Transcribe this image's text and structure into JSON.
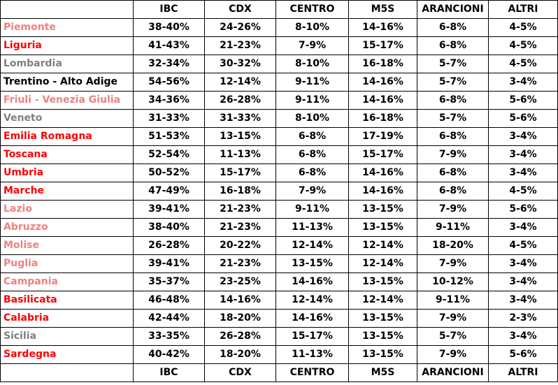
{
  "colors": {
    "black": "#000000",
    "red": "#ff0000",
    "pink": "#f08080",
    "gray": "#808080"
  },
  "header": [
    "",
    "IBC",
    "CDX",
    "CENTRO",
    "M5S",
    "ARANCIONI",
    "ALTRI"
  ],
  "rows": [
    {
      "region": "Piemonte",
      "color": "pink",
      "values": [
        "38-40%",
        "24-26%",
        "8-10%",
        "14-16%",
        "6-8%",
        "4-5%"
      ]
    },
    {
      "region": "Liguria",
      "color": "red",
      "values": [
        "41-43%",
        "21-23%",
        "7-9%",
        "15-17%",
        "6-8%",
        "4-5%"
      ]
    },
    {
      "region": "Lombardia",
      "color": "gray",
      "values": [
        "32-34%",
        "30-32%",
        "8-10%",
        "16-18%",
        "5-7%",
        "4-5%"
      ]
    },
    {
      "region": "Trentino - Alto Adige",
      "color": "black",
      "values": [
        "54-56%",
        "12-14%",
        "9-11%",
        "14-16%",
        "5-7%",
        "3-4%"
      ]
    },
    {
      "region": "Friuli - Venezia Giulia",
      "color": "pink",
      "values": [
        "34-36%",
        "26-28%",
        "9-11%",
        "14-16%",
        "6-8%",
        "5-6%"
      ]
    },
    {
      "region": "Veneto",
      "color": "gray",
      "values": [
        "31-33%",
        "31-33%",
        "8-10%",
        "16-18%",
        "5-7%",
        "5-6%"
      ]
    },
    {
      "region": "Emilia Romagna",
      "color": "red",
      "values": [
        "51-53%",
        "13-15%",
        "6-8%",
        "17-19%",
        "6-8%",
        "3-4%"
      ]
    },
    {
      "region": "Toscana",
      "color": "red",
      "values": [
        "52-54%",
        "11-13%",
        "6-8%",
        "15-17%",
        "7-9%",
        "3-4%"
      ]
    },
    {
      "region": "Umbria",
      "color": "red",
      "values": [
        "50-52%",
        "15-17%",
        "6-8%",
        "14-16%",
        "6-8%",
        "3-4%"
      ]
    },
    {
      "region": "Marche",
      "color": "red",
      "values": [
        "47-49%",
        "16-18%",
        "7-9%",
        "14-16%",
        "6-8%",
        "4-5%"
      ]
    },
    {
      "region": "Lazio",
      "color": "pink",
      "values": [
        "39-41%",
        "21-23%",
        "9-11%",
        "13-15%",
        "7-9%",
        "5-6%"
      ]
    },
    {
      "region": "Abruzzo",
      "color": "pink",
      "values": [
        "38-40%",
        "21-23%",
        "11-13%",
        "13-15%",
        "9-11%",
        "3-4%"
      ]
    },
    {
      "region": "Molise",
      "color": "pink",
      "values": [
        "26-28%",
        "20-22%",
        "12-14%",
        "12-14%",
        "18-20%",
        "4-5%"
      ]
    },
    {
      "region": "Puglia",
      "color": "pink",
      "values": [
        "39-41%",
        "21-23%",
        "13-15%",
        "12-14%",
        "7-9%",
        "3-4%"
      ]
    },
    {
      "region": "Campania",
      "color": "pink",
      "values": [
        "35-37%",
        "23-25%",
        "14-16%",
        "13-15%",
        "10-12%",
        "3-4%"
      ]
    },
    {
      "region": "Basilicata",
      "color": "red",
      "values": [
        "46-48%",
        "14-16%",
        "12-14%",
        "12-14%",
        "9-11%",
        "3-4%"
      ]
    },
    {
      "region": "Calabria",
      "color": "red",
      "values": [
        "42-44%",
        "18-20%",
        "14-16%",
        "13-15%",
        "7-9%",
        "2-3%"
      ]
    },
    {
      "region": "Sicilia",
      "color": "gray",
      "values": [
        "33-35%",
        "26-28%",
        "15-17%",
        "13-15%",
        "5-7%",
        "3-4%"
      ]
    },
    {
      "region": "Sardegna",
      "color": "red",
      "values": [
        "40-42%",
        "18-20%",
        "11-13%",
        "13-15%",
        "7-9%",
        "5-6%"
      ]
    }
  ],
  "footer": [
    "",
    "IBC",
    "CDX",
    "CENTRO",
    "M5S",
    "ARANCIONI",
    "ALTRI"
  ]
}
